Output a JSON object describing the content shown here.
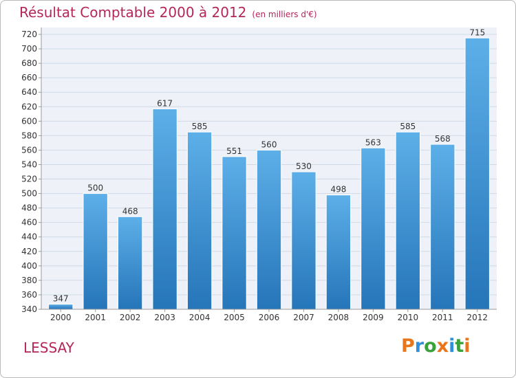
{
  "header": {
    "title": "Résultat Comptable 2000 à 2012",
    "subtitle": "(en milliers d'€)"
  },
  "footer": {
    "commune": "LESSAY",
    "logo_text": "Proxiti"
  },
  "colors": {
    "title": "#b5255a",
    "bar_top": "#5dafe8",
    "bar_bottom": "#2575b9",
    "grid": "#cfd9e6",
    "plot_bg": "#eef2f8",
    "logo": [
      "#e8761d",
      "#2f8fd8",
      "#3aa23a",
      "#e8761d",
      "#2f8fd8",
      "#3aa23a",
      "#e8761d"
    ]
  },
  "chart_data": {
    "type": "bar",
    "title": "Résultat Comptable 2000 à 2012",
    "subtitle": "(en milliers d'€)",
    "xlabel": "",
    "ylabel": "",
    "categories": [
      "2000",
      "2001",
      "2002",
      "2003",
      "2004",
      "2005",
      "2006",
      "2007",
      "2008",
      "2009",
      "2010",
      "2011",
      "2012"
    ],
    "values": [
      347,
      500,
      468,
      617,
      585,
      551,
      560,
      530,
      498,
      563,
      585,
      568,
      715
    ],
    "ylim": [
      340,
      720
    ],
    "yticks": [
      340,
      360,
      380,
      400,
      420,
      440,
      460,
      480,
      500,
      520,
      540,
      560,
      580,
      600,
      620,
      640,
      660,
      680,
      700,
      720
    ],
    "grid": true,
    "legend": "none"
  }
}
